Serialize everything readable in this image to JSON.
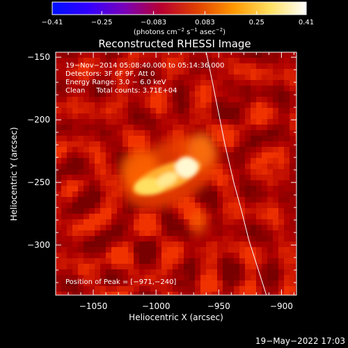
{
  "chart_data": {
    "type": "heatmap",
    "title": "Reconstructed RHESSI Image",
    "xlabel": "Heliocentric X (arcsec)",
    "ylabel": "Heliocentric Y (arcsec)",
    "xlim": [
      -1080,
      -888
    ],
    "ylim": [
      -340,
      -146
    ],
    "xticks": [
      -1050,
      -1000,
      -950,
      -900
    ],
    "xtick_labels": [
      "−1050",
      "−1000",
      "−950",
      "−900"
    ],
    "yticks": [
      -150,
      -200,
      -250,
      -300
    ],
    "ytick_labels": [
      "−150",
      "−200",
      "−250",
      "−300"
    ],
    "colorbar": {
      "range": [
        -0.41,
        0.41
      ],
      "ticks": [
        -0.41,
        -0.25,
        -0.083,
        0.083,
        0.25,
        0.41
      ],
      "tick_labels": [
        "−0.41",
        "−0.25",
        "−0.083",
        "0.083",
        "0.25",
        "0.41"
      ],
      "colormap_stops": [
        "#0010ff",
        "#3300ff",
        "#7a00b8",
        "#b80030",
        "#e04000",
        "#ff9800",
        "#ffe060",
        "#ffffff"
      ]
    },
    "unit_parts": {
      "open": "(photons cm",
      "sup1": "−2",
      "mid1": " s",
      "sup2": "−1",
      "mid2": " asec",
      "sup3": "−2",
      "close": ")"
    },
    "annotations": [
      "19−Nov−2014 05:08:40.000 to 05:14:36.000",
      "Detectors: 3F 6F 9F, Att 0",
      "Energy Range: 3.0 − 6.0 keV",
      "Clean     Total counts: 3.71E+04"
    ],
    "peak_label": "Position of Peak = [−971,−240]",
    "peak": [
      -971,
      -240
    ],
    "limb": [
      [
        -960,
        -146
      ],
      [
        -955,
        -170
      ],
      [
        -950,
        -195
      ],
      [
        -945,
        -220
      ],
      [
        -938,
        -250
      ],
      [
        -932,
        -272
      ],
      [
        -926,
        -296
      ],
      [
        -919,
        -318
      ],
      [
        -912,
        -340
      ]
    ]
  },
  "footer": {
    "date": "19−May−2022 17:03"
  }
}
